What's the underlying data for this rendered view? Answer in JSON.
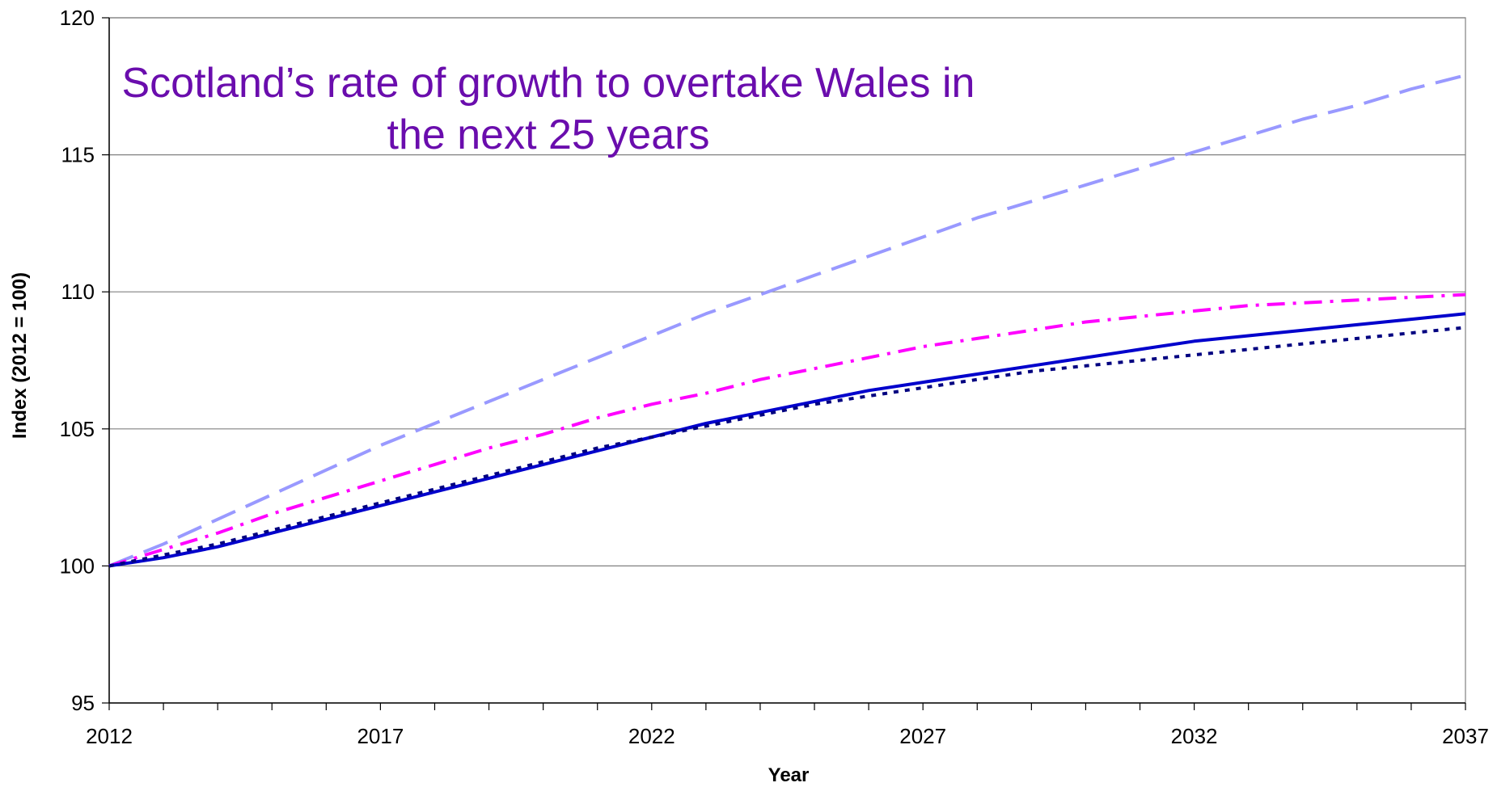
{
  "chart_data": {
    "type": "line",
    "title_lines": [
      "Scotland’s rate of growth to overtake Wales in",
      "the next 25 years"
    ],
    "title_color": "#6A0DAD",
    "xlabel": "Year",
    "ylabel": "Index (2012 = 100)",
    "xlim": [
      2012,
      2037
    ],
    "ylim": [
      95,
      120
    ],
    "x_tick_labels": [
      "2012",
      "2017",
      "2022",
      "2027",
      "2032",
      "2037"
    ],
    "x_tick_values": [
      2012,
      2017,
      2022,
      2027,
      2032,
      2037
    ],
    "y_tick_labels": [
      "95",
      "100",
      "105",
      "110",
      "115",
      "120"
    ],
    "y_tick_values": [
      95,
      100,
      105,
      110,
      115,
      120
    ],
    "grid": "horizontal",
    "x": [
      2012,
      2013,
      2014,
      2015,
      2016,
      2017,
      2018,
      2019,
      2020,
      2021,
      2022,
      2023,
      2024,
      2025,
      2026,
      2027,
      2028,
      2029,
      2030,
      2031,
      2032,
      2033,
      2034,
      2035,
      2036,
      2037
    ],
    "series": [
      {
        "color": "#9999FF",
        "dash": "long-dash",
        "values": [
          100,
          100.8,
          101.7,
          102.6,
          103.5,
          104.4,
          105.2,
          106.0,
          106.8,
          107.6,
          108.4,
          109.2,
          109.9,
          110.6,
          111.3,
          112.0,
          112.7,
          113.3,
          113.9,
          114.5,
          115.1,
          115.7,
          116.3,
          116.8,
          117.4,
          117.9
        ]
      },
      {
        "color": "#FF00FF",
        "dash": "dash-dot",
        "values": [
          100,
          100.6,
          101.2,
          101.9,
          102.5,
          103.1,
          103.7,
          104.3,
          104.8,
          105.4,
          105.9,
          106.3,
          106.8,
          107.2,
          107.6,
          108.0,
          108.3,
          108.6,
          108.9,
          109.1,
          109.3,
          109.5,
          109.6,
          109.7,
          109.8,
          109.9
        ]
      },
      {
        "color": "#0000CC",
        "dash": "solid",
        "values": [
          100,
          100.3,
          100.7,
          101.2,
          101.7,
          102.2,
          102.7,
          103.2,
          103.7,
          104.2,
          104.7,
          105.2,
          105.6,
          106.0,
          106.4,
          106.7,
          107.0,
          107.3,
          107.6,
          107.9,
          108.2,
          108.4,
          108.6,
          108.8,
          109.0,
          109.2
        ]
      },
      {
        "color": "#000080",
        "dash": "dotted",
        "values": [
          100,
          100.4,
          100.8,
          101.3,
          101.8,
          102.3,
          102.8,
          103.3,
          103.8,
          104.3,
          104.7,
          105.1,
          105.5,
          105.9,
          106.2,
          106.5,
          106.8,
          107.1,
          107.3,
          107.5,
          107.7,
          107.9,
          108.1,
          108.3,
          108.5,
          108.7
        ]
      }
    ]
  }
}
